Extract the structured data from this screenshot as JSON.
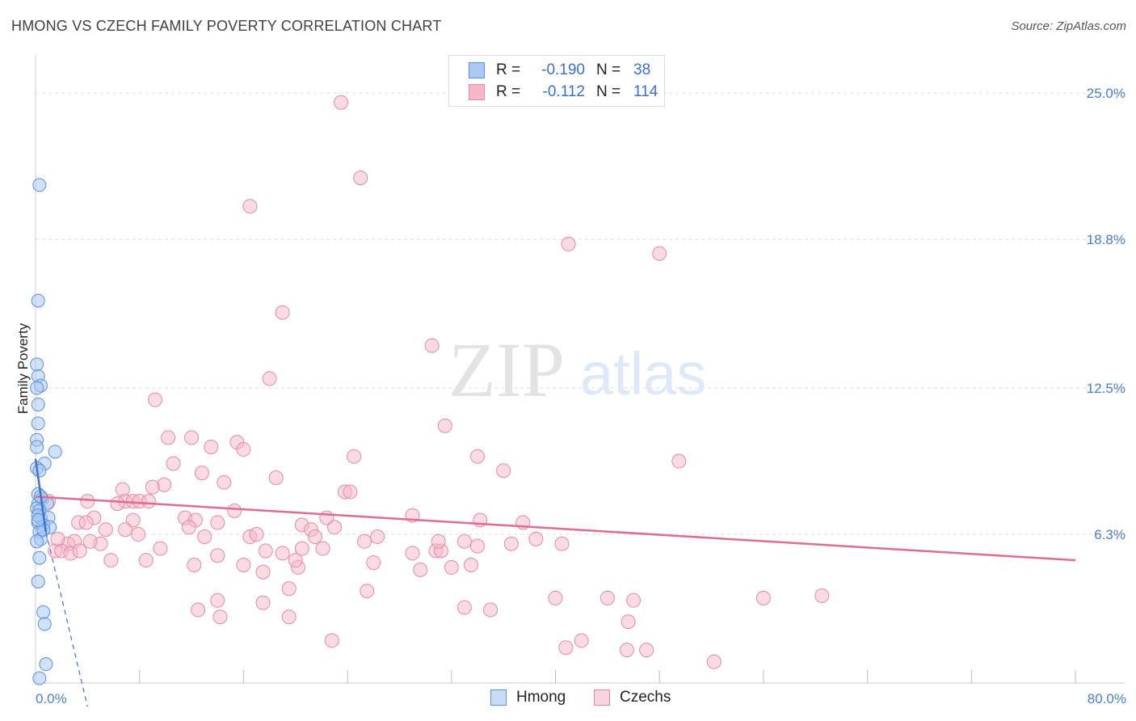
{
  "header": {
    "title": "HMONG VS CZECH FAMILY POVERTY CORRELATION CHART",
    "source": "Source: ZipAtlas.com"
  },
  "watermark": {
    "zip": "ZIP",
    "atlas": "atlas"
  },
  "legend": {
    "rows": [
      {
        "r_label": "R =",
        "r_value": "-0.190",
        "n_label": "N =",
        "n_value": "38",
        "color": "#a9c8f2"
      },
      {
        "r_label": "R =",
        "r_value": "-0.112",
        "n_label": "N =",
        "n_value": "114",
        "color": "#f5b7c8"
      }
    ]
  },
  "bottom_legend": {
    "hmong": "Hmong",
    "czechs": "Czechs"
  },
  "colors": {
    "hmong_fill": "#a9c8f2",
    "hmong_stroke": "#5b8fdc",
    "hmong_line": "#3a74d6",
    "czech_fill": "#f5b7c8",
    "czech_stroke": "#e58aa6",
    "czech_line": "#e06b93",
    "grid": "#dddddd",
    "tick_text": "#4a7fd0"
  },
  "chart_data": {
    "type": "scatter",
    "title": "HMONG VS CZECH FAMILY POVERTY CORRELATION CHART",
    "xlabel": "",
    "ylabel": "Family Poverty",
    "xlim": [
      0,
      80
    ],
    "ylim": [
      0,
      26.2
    ],
    "x_tick_labels": [
      "0.0%",
      "80.0%"
    ],
    "y_ticks": [
      6.3,
      12.5,
      18.8,
      25.0
    ],
    "y_tick_labels": [
      "6.3%",
      "12.5%",
      "18.8%",
      "25.0%"
    ],
    "grid": true,
    "legend_position": "top-center",
    "series": [
      {
        "name": "Hmong",
        "r": -0.19,
        "n": 38,
        "trend": {
          "x0": 0.0,
          "y0": 9.5,
          "x1": 0.8,
          "y1": 6.4,
          "dashed_to_x": 4.0,
          "dashed_to_y": -1.0
        },
        "points": [
          [
            0.3,
            21.1
          ],
          [
            0.2,
            16.2
          ],
          [
            0.1,
            13.5
          ],
          [
            0.2,
            13.0
          ],
          [
            0.4,
            12.6
          ],
          [
            0.1,
            12.5
          ],
          [
            0.2,
            11.8
          ],
          [
            0.2,
            11.0
          ],
          [
            0.1,
            10.3
          ],
          [
            1.5,
            9.8
          ],
          [
            0.7,
            9.3
          ],
          [
            0.1,
            9.1
          ],
          [
            0.2,
            8.0
          ],
          [
            0.5,
            7.8
          ],
          [
            0.2,
            7.6
          ],
          [
            0.9,
            7.6
          ],
          [
            0.1,
            7.4
          ],
          [
            0.3,
            7.3
          ],
          [
            0.4,
            7.0
          ],
          [
            1.0,
            7.0
          ],
          [
            0.2,
            6.8
          ],
          [
            0.6,
            6.7
          ],
          [
            1.1,
            6.6
          ],
          [
            0.3,
            6.4
          ],
          [
            0.4,
            6.1
          ],
          [
            0.1,
            6.0
          ],
          [
            0.3,
            5.3
          ],
          [
            0.2,
            4.3
          ],
          [
            0.6,
            3.0
          ],
          [
            0.7,
            2.5
          ],
          [
            0.8,
            0.8
          ],
          [
            0.3,
            0.2
          ],
          [
            0.1,
            10.0
          ],
          [
            0.4,
            7.9
          ],
          [
            0.2,
            7.1
          ],
          [
            0.6,
            6.5
          ],
          [
            0.3,
            9.0
          ],
          [
            0.2,
            6.9
          ]
        ]
      },
      {
        "name": "Czechs",
        "r": -0.112,
        "n": 114,
        "trend": {
          "x0": 0.0,
          "y0": 7.9,
          "x1": 80.0,
          "y1": 5.2
        },
        "points": [
          [
            23.5,
            24.6
          ],
          [
            25.0,
            21.4
          ],
          [
            16.5,
            20.2
          ],
          [
            41.0,
            18.6
          ],
          [
            48.0,
            18.2
          ],
          [
            19.0,
            15.7
          ],
          [
            30.5,
            14.3
          ],
          [
            18.0,
            12.9
          ],
          [
            9.2,
            12.0
          ],
          [
            31.5,
            10.9
          ],
          [
            10.2,
            10.4
          ],
          [
            12.0,
            10.4
          ],
          [
            15.5,
            10.2
          ],
          [
            16.0,
            9.9
          ],
          [
            13.5,
            10.0
          ],
          [
            24.5,
            9.6
          ],
          [
            34.0,
            9.6
          ],
          [
            49.5,
            9.4
          ],
          [
            10.6,
            9.3
          ],
          [
            36.0,
            9.0
          ],
          [
            12.8,
            8.9
          ],
          [
            18.5,
            8.7
          ],
          [
            14.5,
            8.5
          ],
          [
            9.9,
            8.4
          ],
          [
            9.0,
            8.3
          ],
          [
            6.7,
            8.2
          ],
          [
            23.8,
            8.1
          ],
          [
            24.2,
            8.1
          ],
          [
            6.9,
            7.7
          ],
          [
            7.5,
            7.7
          ],
          [
            8.0,
            7.7
          ],
          [
            6.3,
            7.6
          ],
          [
            8.7,
            7.7
          ],
          [
            4.0,
            7.7
          ],
          [
            1.0,
            7.7
          ],
          [
            15.3,
            7.3
          ],
          [
            29.0,
            7.1
          ],
          [
            22.4,
            7.0
          ],
          [
            11.5,
            7.0
          ],
          [
            12.3,
            6.9
          ],
          [
            14.0,
            6.8
          ],
          [
            7.5,
            6.9
          ],
          [
            4.5,
            7.0
          ],
          [
            3.3,
            6.8
          ],
          [
            3.9,
            6.8
          ],
          [
            20.5,
            6.7
          ],
          [
            21.2,
            6.5
          ],
          [
            11.8,
            6.6
          ],
          [
            6.9,
            6.5
          ],
          [
            5.4,
            6.5
          ],
          [
            7.9,
            6.3
          ],
          [
            16.5,
            6.2
          ],
          [
            17.0,
            6.3
          ],
          [
            13.0,
            6.2
          ],
          [
            25.3,
            6.0
          ],
          [
            33.0,
            6.0
          ],
          [
            36.6,
            5.9
          ],
          [
            5.0,
            5.9
          ],
          [
            2.5,
            5.9
          ],
          [
            3.0,
            6.0
          ],
          [
            4.2,
            6.0
          ],
          [
            20.5,
            5.7
          ],
          [
            22.1,
            5.7
          ],
          [
            1.5,
            5.6
          ],
          [
            2.0,
            5.6
          ],
          [
            1.7,
            6.1
          ],
          [
            2.7,
            5.5
          ],
          [
            3.4,
            5.6
          ],
          [
            9.6,
            5.7
          ],
          [
            17.7,
            5.6
          ],
          [
            19.0,
            5.5
          ],
          [
            29.0,
            5.5
          ],
          [
            30.8,
            5.6
          ],
          [
            31.2,
            5.6
          ],
          [
            34.0,
            5.8
          ],
          [
            14.0,
            5.4
          ],
          [
            5.8,
            5.2
          ],
          [
            8.5,
            5.2
          ],
          [
            12.2,
            5.0
          ],
          [
            16.0,
            5.0
          ],
          [
            20.2,
            4.9
          ],
          [
            26.0,
            5.1
          ],
          [
            32.0,
            4.9
          ],
          [
            33.5,
            5.0
          ],
          [
            40.5,
            5.9
          ],
          [
            38.5,
            6.1
          ],
          [
            37.5,
            6.8
          ],
          [
            34.2,
            6.9
          ],
          [
            21.5,
            6.2
          ],
          [
            26.3,
            6.2
          ],
          [
            31.0,
            6.0
          ],
          [
            20.0,
            5.2
          ],
          [
            23.0,
            6.6
          ],
          [
            29.6,
            4.8
          ],
          [
            17.5,
            4.7
          ],
          [
            25.5,
            3.9
          ],
          [
            19.5,
            4.0
          ],
          [
            14.0,
            3.5
          ],
          [
            17.5,
            3.4
          ],
          [
            12.5,
            3.1
          ],
          [
            19.5,
            2.8
          ],
          [
            14.2,
            2.8
          ],
          [
            33.0,
            3.2
          ],
          [
            35.0,
            3.1
          ],
          [
            40.0,
            3.6
          ],
          [
            44.0,
            3.6
          ],
          [
            46.0,
            3.5
          ],
          [
            45.6,
            2.6
          ],
          [
            56.0,
            3.6
          ],
          [
            60.5,
            3.7
          ],
          [
            22.8,
            1.8
          ],
          [
            42.0,
            1.8
          ],
          [
            40.8,
            1.5
          ],
          [
            45.5,
            1.4
          ],
          [
            47.0,
            1.4
          ],
          [
            52.2,
            0.9
          ]
        ]
      }
    ]
  }
}
